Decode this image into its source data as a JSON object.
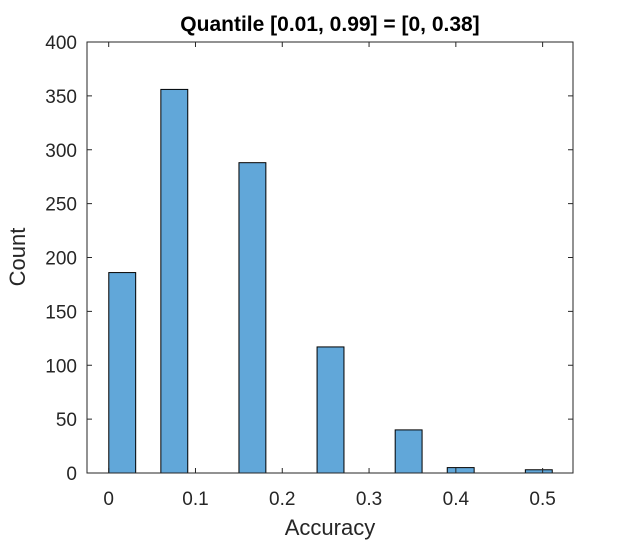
{
  "chart_data": {
    "type": "bar",
    "title": "Quantile [0.01, 0.99] = [0, 0.38]",
    "xlabel": "Accuracy",
    "ylabel": "Count",
    "xlim": [
      -0.025,
      0.535
    ],
    "ylim": [
      0,
      400
    ],
    "bar_width": 0.031,
    "x_ticks": [
      0,
      0.1,
      0.2,
      0.3,
      0.4,
      0.5
    ],
    "x_tick_labels": [
      "0",
      "0.1",
      "0.2",
      "0.3",
      "0.4",
      "0.5"
    ],
    "y_ticks": [
      0,
      50,
      100,
      150,
      200,
      250,
      300,
      350,
      400
    ],
    "y_tick_labels": [
      "0",
      "50",
      "100",
      "150",
      "200",
      "250",
      "300",
      "350",
      "400"
    ],
    "x": [
      0.0156,
      0.0756,
      0.1656,
      0.2556,
      0.3456,
      0.4056,
      0.4956
    ],
    "values": [
      186,
      356,
      288,
      117,
      40,
      5,
      3
    ],
    "grid": false,
    "bar_color": "#61a7d9",
    "edge_color": "#000000"
  }
}
